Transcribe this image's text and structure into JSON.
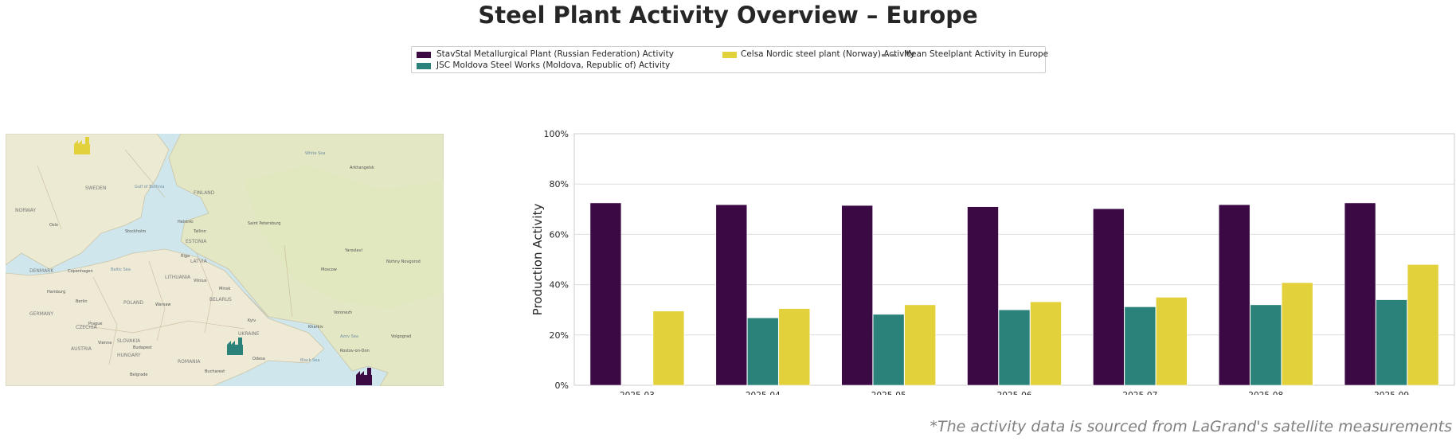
{
  "title": "Steel Plant Activity Overview – Europe",
  "footnote": "*The activity data is sourced from LaGrand's satellite measurements",
  "colors": {
    "stavstal": "#3b0a45",
    "moldova": "#2b827a",
    "celsa": "#e2d13a",
    "mean": "#808080"
  },
  "legend": [
    {
      "label": "StavStal Metallurgical Plant (Russian Federation) Activity",
      "color": "#3b0a45",
      "style": "box"
    },
    {
      "label": "JSC Moldova Steel Works (Moldova, Republic of) Activity",
      "color": "#2b827a",
      "style": "box"
    },
    {
      "label": "Celsa Nordic steel plant (Norway) Activity",
      "color": "#e2d13a",
      "style": "box"
    },
    {
      "label": "Mean Steelplant Activity in Europe",
      "color": "#808080",
      "style": "dashed"
    }
  ],
  "map": {
    "labels": [
      "SWEDEN",
      "FINLAND",
      "NORWAY",
      "ESTONIA",
      "LATVIA",
      "LITHUANIA",
      "DENMARK",
      "BELARUS",
      "POLAND",
      "GERMANY",
      "UKRAINE",
      "CZECHIA",
      "SLOVAKIA",
      "AUSTRIA",
      "HUNGARY",
      "ROMANIA",
      "Helsinki",
      "Saint Petersburg",
      "Stockholm",
      "Oslo",
      "Riga",
      "Tallinn",
      "Copenhagen",
      "Vilnius",
      "Minsk",
      "Warsaw",
      "Berlin",
      "Hamburg",
      "Prague",
      "Vienna",
      "Budapest",
      "Bucharest",
      "Kyiv",
      "Odesa",
      "Moscow",
      "Yaroslavl",
      "Nizhny Novgorod",
      "Arkhangelsk",
      "Voronezh",
      "Kharkiv",
      "Rostov-on-Don",
      "Volgograd",
      "Belgrade",
      "Baltic Sea",
      "Black Sea",
      "White Sea",
      "Gulf of Bothnia",
      "Azov Sea"
    ],
    "markers": [
      {
        "plant": "Celsa Nordic steel plant (Norway)",
        "color": "#e2d13a"
      },
      {
        "plant": "JSC Moldova Steel Works (Moldova, Republic of)",
        "color": "#2b827a"
      },
      {
        "plant": "StavStal Metallurgical Plant (Russian Federation)",
        "color": "#3b0a45"
      }
    ]
  },
  "chart_data": {
    "type": "bar",
    "ylabel": "Production Activity",
    "ylim": [
      0,
      100
    ],
    "yticks": [
      0,
      20,
      40,
      60,
      80,
      100
    ],
    "ytick_labels": [
      "0%",
      "20%",
      "40%",
      "60%",
      "80%",
      "100%"
    ],
    "grid": "horizontal",
    "categories": [
      "2025-03",
      "2025-04",
      "2025-05",
      "2025-06",
      "2025-07",
      "2025-08",
      "2025-09"
    ],
    "series": [
      {
        "name": "StavStal Metallurgical Plant (Russian Federation) Activity",
        "color": "#3b0a45",
        "values": [
          72.5,
          71.8,
          71.5,
          71.0,
          70.2,
          71.8,
          72.5
        ]
      },
      {
        "name": "JSC Moldova Steel Works (Moldova, Republic of) Activity",
        "color": "#2b827a",
        "values": [
          null,
          26.8,
          28.2,
          30.0,
          31.2,
          32.0,
          34.0
        ]
      },
      {
        "name": "Celsa Nordic steel plant (Norway) Activity",
        "color": "#e2d13a",
        "values": [
          29.5,
          30.5,
          32.0,
          33.2,
          35.0,
          40.8,
          48.0
        ]
      }
    ]
  }
}
